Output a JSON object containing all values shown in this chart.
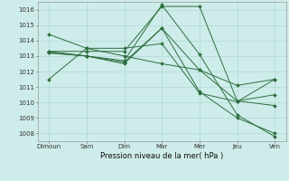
{
  "background_color": "#ceecea",
  "grid_color": "#b0d8d4",
  "line_color": "#2d6e3e",
  "xlabel": "Pression niveau de la mer( hPa )",
  "xtick_labels": [
    "Dimoun",
    "Sam",
    "Dim",
    "Mar",
    "Mer",
    "Jeu",
    "Ven"
  ],
  "ylim": [
    1007.5,
    1016.5
  ],
  "yticks": [
    1008,
    1009,
    1010,
    1011,
    1012,
    1013,
    1014,
    1015,
    1016
  ],
  "series": [
    [
      1011.5,
      1013.5,
      1013.0,
      1012.5,
      1012.1,
      1011.1,
      1011.5
    ],
    [
      1014.4,
      1013.5,
      1013.5,
      1013.8,
      1010.6,
      1010.05,
      1011.5
    ],
    [
      1013.3,
      1013.3,
      1013.3,
      1016.2,
      1016.2,
      1010.1,
      1009.8
    ],
    [
      1013.2,
      1013.0,
      1012.7,
      1016.3,
      1013.1,
      1009.2,
      1007.8
    ],
    [
      1013.2,
      1013.0,
      1012.5,
      1014.8,
      1012.1,
      1010.1,
      1010.5
    ],
    [
      1013.3,
      1013.0,
      1012.6,
      1014.8,
      1010.7,
      1009.0,
      1008.0
    ]
  ],
  "figsize": [
    3.2,
    2.0
  ],
  "dpi": 100
}
